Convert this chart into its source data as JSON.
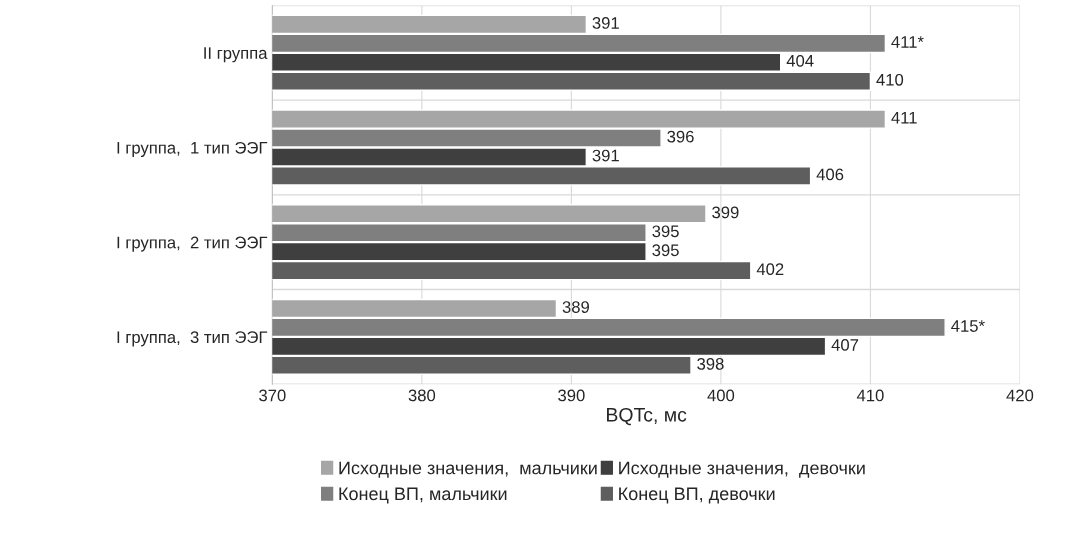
{
  "chart_data": {
    "type": "bar",
    "orientation": "horizontal",
    "xlabel": "BQTc, мс",
    "categories": [
      "II группа",
      "I группа,  1 тип ЭЭГ",
      "I группа,  2 тип ЭЭГ",
      "I группа,  3 тип ЭЭГ"
    ],
    "series": [
      {
        "name": "Исходные значения,  мальчики",
        "color": "#a6a6a6",
        "values": [
          391,
          411,
          399,
          389
        ],
        "value_labels": [
          "391",
          "411",
          "399",
          "389"
        ]
      },
      {
        "name": "Конец ВП, мальчики",
        "color": "#7f7f7f",
        "values": [
          411,
          396,
          395,
          415
        ],
        "value_labels": [
          "411*",
          "396",
          "395",
          "415*"
        ]
      },
      {
        "name": "Исходные значения,  девочки",
        "color": "#3f3f3f",
        "values": [
          404,
          391,
          395,
          407
        ],
        "value_labels": [
          "404",
          "391",
          "395",
          "407"
        ]
      },
      {
        "name": "Конец ВП, девочки",
        "color": "#5e5e5e",
        "values": [
          410,
          406,
          402,
          398
        ],
        "value_labels": [
          "410",
          "406",
          "402",
          "398"
        ]
      }
    ],
    "xlim": [
      370,
      420
    ],
    "xticks": [
      370,
      380,
      390,
      400,
      410,
      420
    ],
    "grid": true,
    "legend": "bottom"
  }
}
